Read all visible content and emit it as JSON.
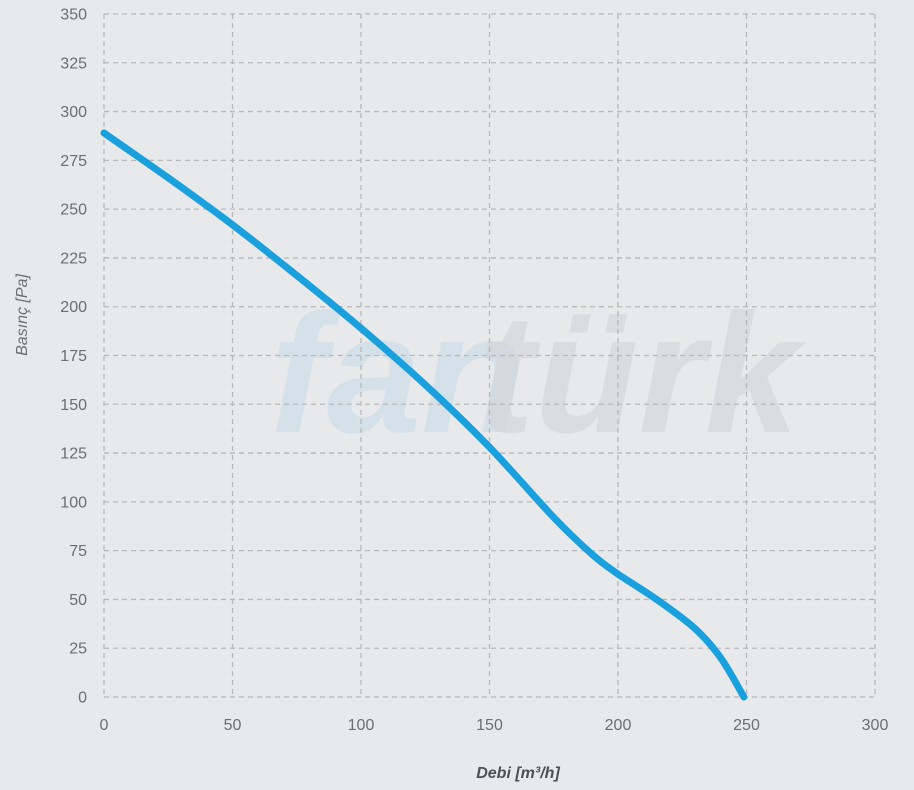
{
  "watermark": {
    "part1": "fan",
    "part2": "türk"
  },
  "colors": {
    "background": "#e8e9eb",
    "grid": "#b8b9bb",
    "curve": "#1aa0dc"
  },
  "chart_data": {
    "type": "line",
    "xlabel": "Debi [m³/h]",
    "ylabel": "Basınç [Pa]",
    "xlim": [
      0,
      300
    ],
    "ylim": [
      0,
      350
    ],
    "xticks": [
      0,
      50,
      100,
      150,
      200,
      250,
      300
    ],
    "yticks": [
      0,
      25,
      50,
      75,
      100,
      125,
      150,
      175,
      200,
      225,
      250,
      275,
      300,
      325,
      350
    ],
    "grid": true,
    "series": [
      {
        "x": [
          0,
          25,
          50,
          75,
          100,
          125,
          150,
          175,
          190,
          200,
          215,
          230,
          240,
          249
        ],
        "y": [
          289,
          266,
          242,
          216,
          189,
          160,
          128,
          92,
          73,
          63,
          50,
          35,
          20,
          0
        ]
      }
    ]
  }
}
